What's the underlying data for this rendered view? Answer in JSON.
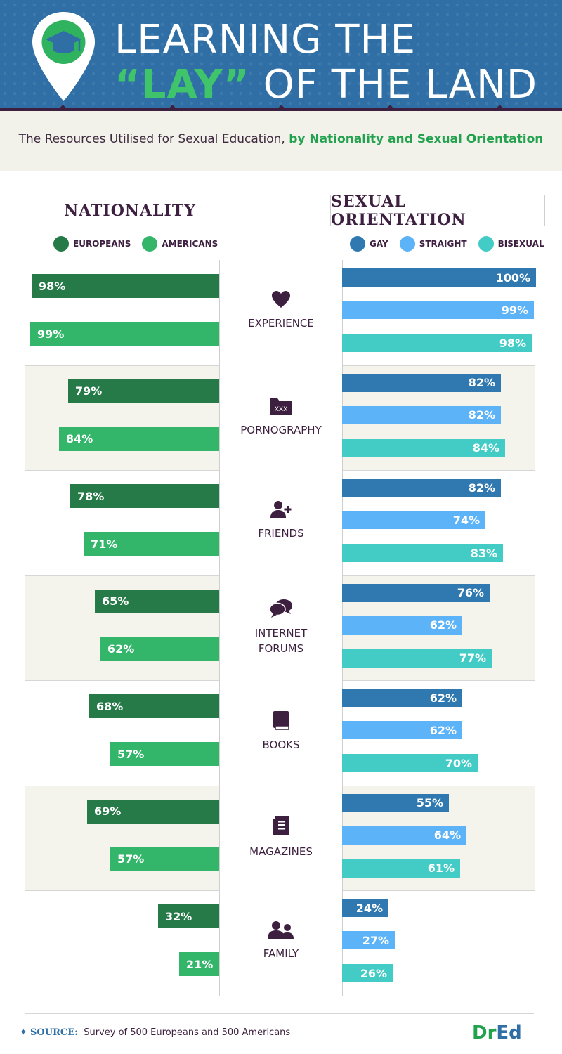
{
  "header": {
    "title_line1": "LEARNING THE",
    "title_accent": "“LAY”",
    "title_line2_rest": " OF THE LAND",
    "icon": "graduation-cap-icon"
  },
  "subtitle": {
    "plain": "The Resources Utilised for Sexual Education, ",
    "highlight": "by Nationality and Sexual Orientation"
  },
  "nationality": {
    "heading": "NATIONALITY"
  },
  "orientation": {
    "heading": "SEXUAL ORIENTATION"
  },
  "footer": {
    "source_label": "SOURCE:",
    "source_text": "Survey of 500 Europeans and 500 Americans",
    "brand_a": "Dr",
    "brand_b": "Ed"
  },
  "colors": {
    "europeans": "#257a48",
    "americans": "#33b56a",
    "gay": "#2f79b0",
    "straight": "#5cb3f7",
    "bisexual": "#43cbc6"
  },
  "chart_data": [
    {
      "type": "bar",
      "orientation": "horizontal",
      "title": "NATIONALITY",
      "categories": [
        "EXPERIENCE",
        "PORNOGRAPHY",
        "FRIENDS",
        "INTERNET FORUMS",
        "BOOKS",
        "MAGAZINES",
        "FAMILY"
      ],
      "series": [
        {
          "name": "EUROPEANS",
          "values": [
            98,
            79,
            78,
            65,
            68,
            69,
            32
          ],
          "labels": [
            "98%",
            "79%",
            "78%",
            "65%",
            "68%",
            "69%",
            "32%"
          ]
        },
        {
          "name": "AMERICANS",
          "values": [
            99,
            84,
            71,
            62,
            57,
            57,
            21
          ],
          "labels": [
            "99%",
            "84%",
            "71%",
            "62%",
            "57%",
            "57%",
            "21%"
          ]
        }
      ],
      "xlim": [
        0,
        100
      ],
      "unit": "%"
    },
    {
      "type": "bar",
      "orientation": "horizontal",
      "title": "SEXUAL ORIENTATION",
      "categories": [
        "EXPERIENCE",
        "PORNOGRAPHY",
        "FRIENDS",
        "INTERNET FORUMS",
        "BOOKS",
        "MAGAZINES",
        "FAMILY"
      ],
      "series": [
        {
          "name": "GAY",
          "values": [
            100,
            82,
            82,
            76,
            62,
            55,
            24
          ],
          "labels": [
            "100%",
            "82%",
            "82%",
            "76%",
            "62%",
            "55%",
            "24%"
          ]
        },
        {
          "name": "STRAIGHT",
          "values": [
            99,
            82,
            74,
            62,
            62,
            64,
            27
          ],
          "labels": [
            "99%",
            "82%",
            "74%",
            "62%",
            "62%",
            "64%",
            "27%"
          ]
        },
        {
          "name": "BISEXUAL",
          "values": [
            98,
            84,
            83,
            77,
            70,
            61,
            26
          ],
          "labels": [
            "98%",
            "84%",
            "83%",
            "77%",
            "70%",
            "61%",
            "26%"
          ]
        }
      ],
      "xlim": [
        0,
        100
      ],
      "unit": "%"
    }
  ],
  "category_icons": [
    "heart-icon",
    "folder-xxx-icon",
    "add-friend-icon",
    "chat-bubbles-icon",
    "book-icon",
    "magazine-icon",
    "family-icon"
  ],
  "category_lines": [
    [
      "EXPERIENCE"
    ],
    [
      "PORNOGRAPHY"
    ],
    [
      "FRIENDS"
    ],
    [
      "INTERNET",
      "FORUMS"
    ],
    [
      "BOOKS"
    ],
    [
      "MAGAZINES"
    ],
    [
      "FAMILY"
    ]
  ]
}
